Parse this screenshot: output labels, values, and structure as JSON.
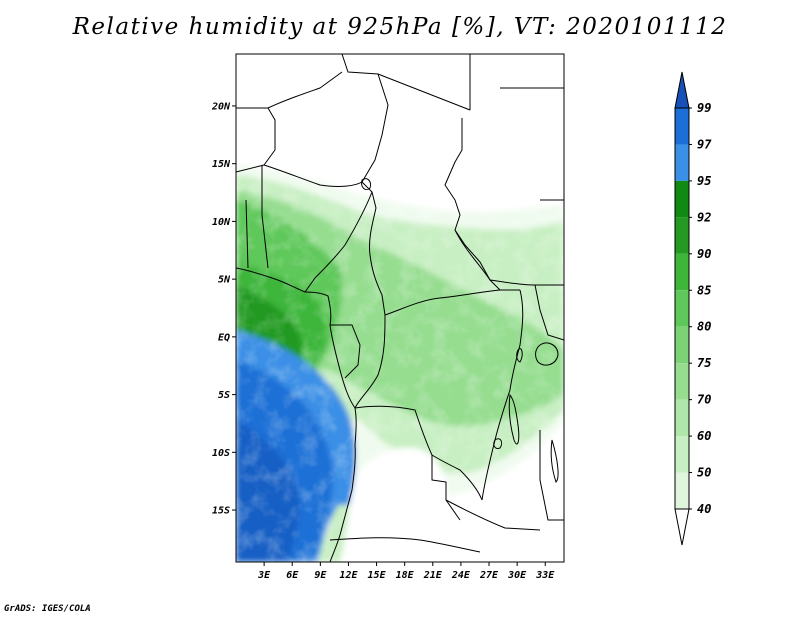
{
  "title": "Relative humidity at 925hPa [%], VT: 2020101112",
  "credit": "GrADS: IGES/COLA",
  "map": {
    "lat_range": [
      -19.5,
      24.5
    ],
    "lon_range": [
      0,
      35
    ],
    "lat_ticks": [
      {
        "value": 20,
        "label": "20N"
      },
      {
        "value": 15,
        "label": "15N"
      },
      {
        "value": 10,
        "label": "10N"
      },
      {
        "value": 5,
        "label": "5N"
      },
      {
        "value": 0,
        "label": "EQ"
      },
      {
        "value": -5,
        "label": "5S"
      },
      {
        "value": -10,
        "label": "10S"
      },
      {
        "value": -15,
        "label": "15S"
      }
    ],
    "lon_ticks": [
      {
        "value": 3,
        "label": "3E"
      },
      {
        "value": 6,
        "label": "6E"
      },
      {
        "value": 9,
        "label": "9E"
      },
      {
        "value": 12,
        "label": "12E"
      },
      {
        "value": 15,
        "label": "15E"
      },
      {
        "value": 18,
        "label": "18E"
      },
      {
        "value": 21,
        "label": "21E"
      },
      {
        "value": 24,
        "label": "24E"
      },
      {
        "value": 27,
        "label": "27E"
      },
      {
        "value": 30,
        "label": "30E"
      },
      {
        "value": 33,
        "label": "33E"
      }
    ]
  },
  "colorbar": {
    "levels": [
      "40",
      "50",
      "60",
      "70",
      "75",
      "80",
      "85",
      "90",
      "92",
      "95",
      "97",
      "99"
    ],
    "colors": [
      "#f0fbef",
      "#dff6dc",
      "#c8efc3",
      "#afe6a9",
      "#96dd90",
      "#7cd376",
      "#5fc85a",
      "#3db63a",
      "#249a24",
      "#118a14",
      "#3a8fe6",
      "#1c6fd6",
      "#1650b8"
    ],
    "triangle_top_color": "#1650b8",
    "triangle_bottom_color": "#ffffff"
  }
}
